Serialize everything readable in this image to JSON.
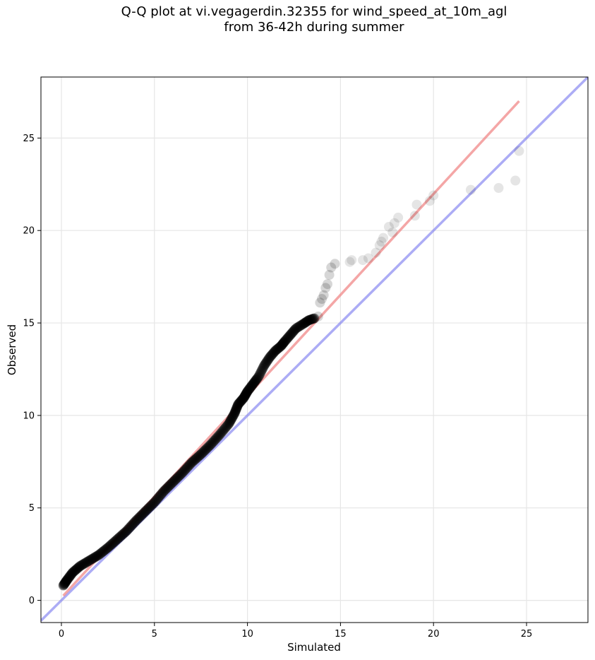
{
  "chart_data": {
    "type": "scatter",
    "title_line1": "Q-Q plot at vi.vegagerdin.32355 for wind_speed_at_10m_agl",
    "title_line2": "from 36-42h during summer",
    "xlabel": "Simulated",
    "ylabel": "Observed",
    "xlim": [
      -1.1,
      28.3
    ],
    "ylim": [
      -1.2,
      28.3
    ],
    "xticks": [
      0,
      5,
      10,
      15,
      20,
      25
    ],
    "yticks": [
      0,
      5,
      10,
      15,
      20,
      25
    ],
    "grid": true,
    "colors": {
      "points": "#000000",
      "fit_line": "#f08080",
      "identity_line": "#8080f0"
    },
    "fit_line": {
      "x": [
        0.1,
        24.6
      ],
      "y": [
        0.25,
        27.0
      ]
    },
    "identity_line": {
      "x": [
        -1.1,
        28.3
      ],
      "y": [
        -1.1,
        28.3
      ]
    },
    "dense_curve": {
      "x": [
        0.1,
        0.3,
        0.6,
        1.0,
        1.5,
        2.0,
        2.5,
        3.0,
        3.5,
        4.0,
        4.5,
        5.0,
        5.5,
        6.0,
        6.5,
        7.0,
        7.5,
        8.0,
        8.5,
        9.0,
        9.3,
        9.5,
        9.8,
        10.0,
        10.3,
        10.6,
        10.9,
        11.2,
        11.5,
        11.8,
        12.0,
        12.3,
        12.6,
        13.0,
        13.3,
        13.6
      ],
      "y": [
        0.8,
        1.1,
        1.5,
        1.85,
        2.15,
        2.45,
        2.85,
        3.3,
        3.75,
        4.3,
        4.8,
        5.3,
        5.9,
        6.4,
        6.9,
        7.45,
        7.9,
        8.4,
        8.95,
        9.55,
        10.1,
        10.6,
        10.95,
        11.3,
        11.7,
        12.1,
        12.7,
        13.15,
        13.5,
        13.75,
        14.0,
        14.35,
        14.7,
        14.95,
        15.15,
        15.25
      ]
    },
    "tail_points": {
      "x": [
        13.8,
        13.9,
        14.0,
        14.1,
        14.2,
        14.3,
        14.4,
        14.5,
        14.7,
        15.5,
        15.6,
        16.2,
        16.5,
        16.9,
        17.1,
        17.2,
        17.3,
        17.6,
        17.8,
        17.9,
        18.1,
        19.0,
        19.1,
        19.8,
        20.0,
        22.0,
        23.5,
        24.4,
        24.6
      ],
      "y": [
        15.35,
        16.1,
        16.3,
        16.5,
        16.9,
        17.1,
        17.6,
        18.0,
        18.2,
        18.3,
        18.4,
        18.4,
        18.5,
        18.8,
        19.2,
        19.4,
        19.6,
        20.2,
        19.9,
        20.4,
        20.7,
        20.8,
        21.4,
        21.6,
        21.9,
        22.2,
        22.3,
        22.7,
        24.3
      ]
    }
  }
}
